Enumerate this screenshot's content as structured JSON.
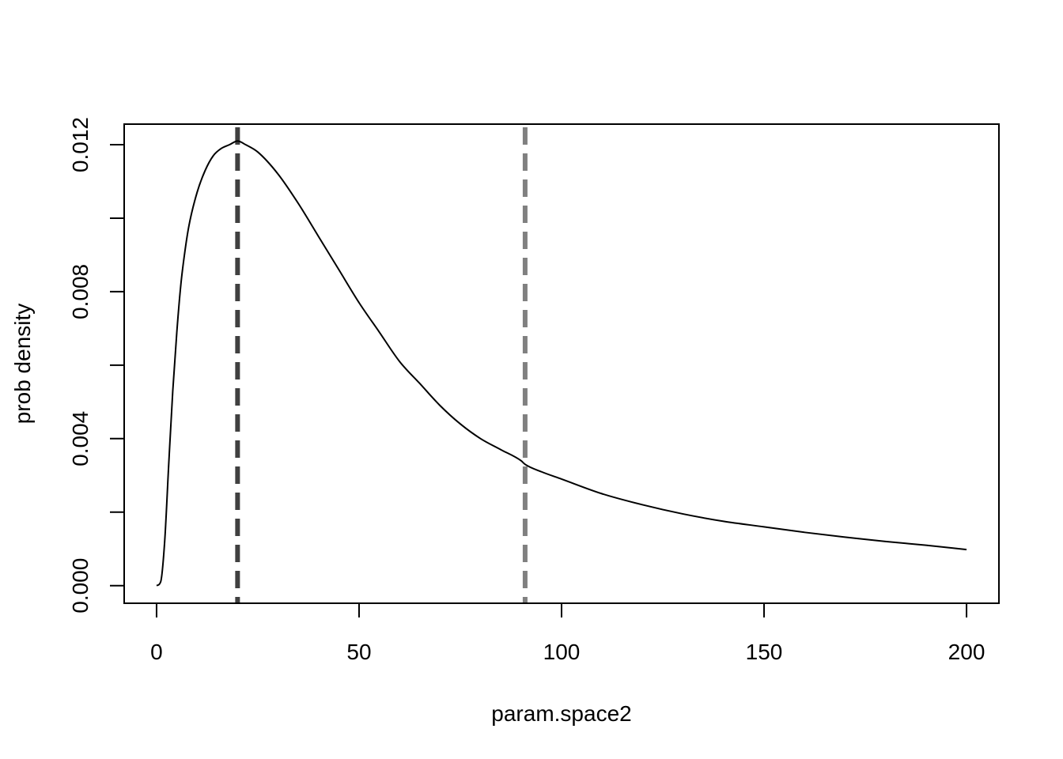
{
  "chart_data": {
    "type": "line",
    "title": "",
    "xlabel": "param.space2",
    "ylabel": "prob density",
    "xlim": [
      -8,
      208
    ],
    "ylim": [
      -0.00048,
      0.01256
    ],
    "x_ticks": [
      0,
      50,
      100,
      150,
      200
    ],
    "x_tick_labels": [
      "0",
      "50",
      "100",
      "150",
      "200"
    ],
    "y_ticks": [
      0,
      0.002,
      0.004,
      0.006,
      0.008,
      0.01,
      0.012
    ],
    "y_tick_labels": [
      "0.000",
      "",
      "0.004",
      "",
      "0.008",
      "",
      "0.012"
    ],
    "grid": false,
    "legend": "none",
    "series": [
      {
        "color": "#000000",
        "x": [
          0,
          1,
          2,
          3,
          4,
          5,
          6,
          7,
          8,
          10,
          12,
          14,
          16,
          18,
          20,
          22,
          25,
          30,
          35,
          40,
          45,
          50,
          55,
          60,
          65,
          70,
          75,
          80,
          85,
          90,
          91,
          95,
          100,
          110,
          120,
          130,
          140,
          150,
          160,
          170,
          180,
          190,
          200
        ],
        "y": [
          0.0,
          0.0001,
          0.0012,
          0.0033,
          0.0053,
          0.0069,
          0.0082,
          0.0091,
          0.0098,
          0.0107,
          0.0113,
          0.0117,
          0.0119,
          0.012,
          0.0121,
          0.012,
          0.0118,
          0.0112,
          0.0104,
          0.0095,
          0.0086,
          0.0077,
          0.0069,
          0.0061,
          0.0055,
          0.0049,
          0.0044,
          0.004,
          0.0037,
          0.0034,
          0.0033,
          0.0031,
          0.0029,
          0.0025,
          0.0022,
          0.00195,
          0.00175,
          0.0016,
          0.00145,
          0.00132,
          0.0012,
          0.0011,
          0.00098
        ]
      }
    ],
    "reference_lines": [
      {
        "x": 20,
        "color": "#404040",
        "style": "dashed"
      },
      {
        "x": 91,
        "color": "#808080",
        "style": "dashed"
      }
    ]
  }
}
